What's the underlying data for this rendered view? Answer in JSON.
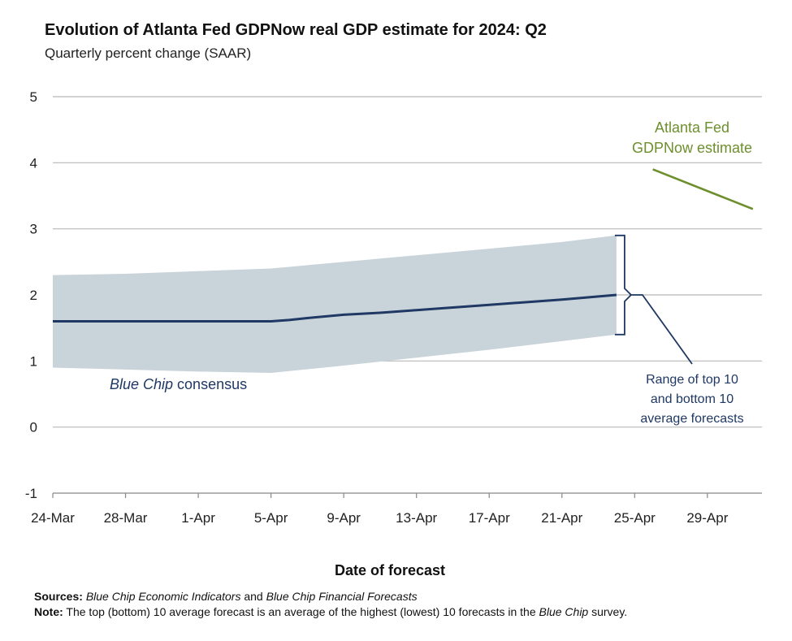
{
  "title": "Evolution of Atlanta Fed GDPNow real GDP estimate for 2024: Q2",
  "subtitle": "Quarterly percent change (SAAR)",
  "chart_data": {
    "type": "line",
    "xlabel": "Date of forecast",
    "ylabel": "",
    "ylim": [
      -1,
      5
    ],
    "yticks": [
      -1,
      0,
      1,
      2,
      3,
      4,
      5
    ],
    "x_tick_labels": [
      "24-Mar",
      "28-Mar",
      "1-Apr",
      "5-Apr",
      "9-Apr",
      "13-Apr",
      "17-Apr",
      "21-Apr",
      "25-Apr",
      "29-Apr"
    ],
    "x_tick_values": [
      0,
      4,
      8,
      12,
      16,
      20,
      24,
      28,
      32,
      36
    ],
    "xlim": [
      0,
      39
    ],
    "grid": true,
    "series": [
      {
        "name": "Blue Chip consensus",
        "color": "#1f3864",
        "x": [
          0,
          4,
          8,
          12,
          13,
          14,
          16,
          18,
          20,
          22,
          24,
          26,
          28,
          31
        ],
        "y": [
          1.6,
          1.6,
          1.6,
          1.6,
          1.62,
          1.65,
          1.7,
          1.73,
          1.77,
          1.81,
          1.85,
          1.89,
          1.93,
          2.0
        ]
      },
      {
        "name": "Atlanta Fed GDPNow estimate",
        "color": "#6e8f2e",
        "x": [
          33,
          38.5
        ],
        "y": [
          3.9,
          3.3
        ]
      }
    ],
    "bands": [
      {
        "name": "Range of top 10 and bottom 10 average forecasts",
        "color": "#c9d3da",
        "x": [
          0,
          4,
          8,
          12,
          16,
          20,
          24,
          28,
          31
        ],
        "upper": [
          2.3,
          2.32,
          2.36,
          2.4,
          2.5,
          2.6,
          2.7,
          2.8,
          2.9
        ],
        "lower": [
          0.9,
          0.87,
          0.84,
          0.82,
          0.93,
          1.05,
          1.17,
          1.3,
          1.4
        ]
      }
    ],
    "annotations": {
      "consensus_label_italic": "Blue Chip",
      "consensus_label_rest": " consensus",
      "gdpnow_line1": "Atlanta Fed",
      "gdpnow_line2": "GDPNow estimate",
      "range_line1": "Range of top 10",
      "range_line2": "and bottom 10",
      "range_line3": "average forecasts"
    }
  },
  "notes": {
    "sources_label": "Sources:",
    "sources_italic1": "Blue Chip Economic Indicators",
    "sources_and": " and ",
    "sources_italic2": "Blue Chip Financial Forecasts",
    "note_label": "Note:",
    "note_text": " The top (bottom) 10 average forecast is an average of the highest (lowest) 10 forecasts in the ",
    "note_italic": "Blue Chip",
    "note_end": " survey."
  }
}
